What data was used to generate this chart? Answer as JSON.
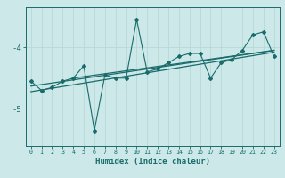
{
  "xlabel": "Humidex (Indice chaleur)",
  "bg_color": "#cce8e8",
  "line_color": "#1a6b6b",
  "grid_color": "#b8d8d8",
  "x_values": [
    0,
    1,
    2,
    3,
    4,
    5,
    6,
    7,
    8,
    9,
    10,
    11,
    12,
    13,
    14,
    15,
    16,
    17,
    18,
    19,
    20,
    21,
    22,
    23
  ],
  "series1": [
    -4.55,
    -4.7,
    -4.65,
    -4.55,
    -4.5,
    -4.3,
    -5.35,
    -4.45,
    -4.5,
    -4.5,
    -3.55,
    -4.4,
    -4.35,
    -4.25,
    -4.15,
    -4.1,
    -4.1,
    -4.5,
    -4.25,
    -4.2,
    -4.05,
    -3.8,
    -3.75,
    -4.15
  ],
  "trend1_x": [
    0,
    23
  ],
  "trend1_y": [
    -4.63,
    -4.05
  ],
  "trend2_x": [
    0,
    23
  ],
  "trend2_y": [
    -4.72,
    -4.08
  ],
  "trend3_x": [
    4,
    23
  ],
  "trend3_y": [
    -4.5,
    -4.05
  ],
  "ylim": [
    -5.6,
    -3.35
  ],
  "xlim": [
    -0.5,
    23.5
  ],
  "yticks": [
    -5,
    -4
  ],
  "xticks": [
    0,
    1,
    2,
    3,
    4,
    5,
    6,
    7,
    8,
    9,
    10,
    11,
    12,
    13,
    14,
    15,
    16,
    17,
    18,
    19,
    20,
    21,
    22,
    23
  ]
}
